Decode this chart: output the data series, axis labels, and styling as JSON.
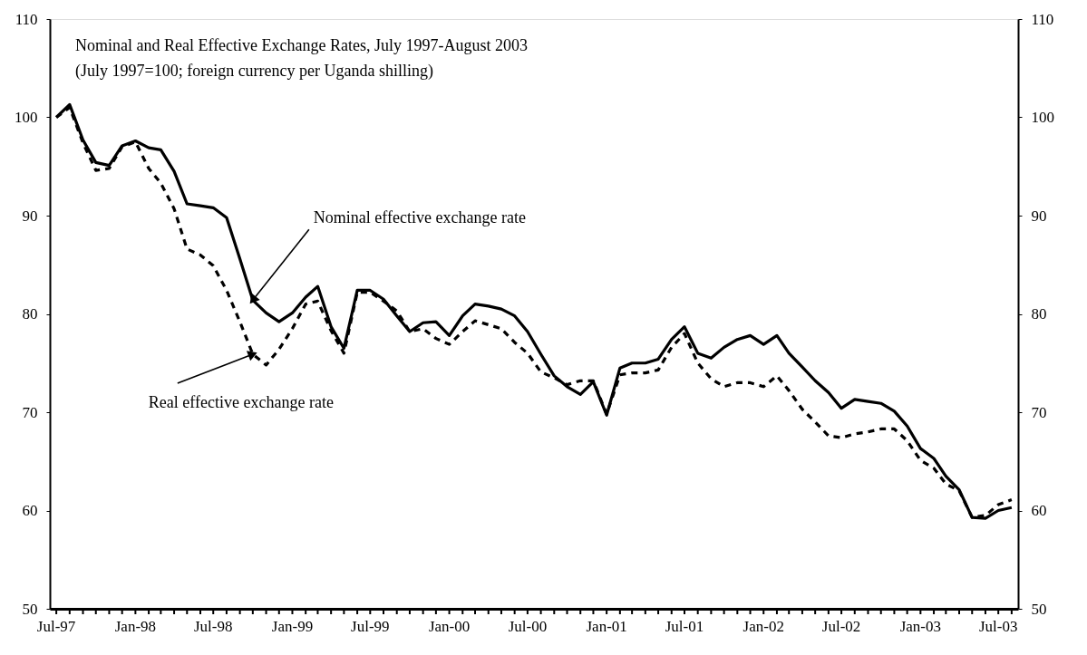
{
  "chart_data": {
    "type": "line",
    "title": "Nominal and Real Effective Exchange Rates, July 1997-August 2003",
    "subtitle": "(July 1997=100; foreign currency per Uganda shilling)",
    "x": [
      "1997-07",
      "1997-08",
      "1997-09",
      "1997-10",
      "1997-11",
      "1997-12",
      "1998-01",
      "1998-02",
      "1998-03",
      "1998-04",
      "1998-05",
      "1998-06",
      "1998-07",
      "1998-08",
      "1998-09",
      "1998-10",
      "1998-11",
      "1998-12",
      "1999-01",
      "1999-02",
      "1999-03",
      "1999-04",
      "1999-05",
      "1999-06",
      "1999-07",
      "1999-08",
      "1999-09",
      "1999-10",
      "1999-11",
      "1999-12",
      "2000-01",
      "2000-02",
      "2000-03",
      "2000-04",
      "2000-05",
      "2000-06",
      "2000-07",
      "2000-08",
      "2000-09",
      "2000-10",
      "2000-11",
      "2000-12",
      "2001-01",
      "2001-02",
      "2001-03",
      "2001-04",
      "2001-05",
      "2001-06",
      "2001-07",
      "2001-08",
      "2001-09",
      "2001-10",
      "2001-11",
      "2001-12",
      "2002-01",
      "2002-02",
      "2002-03",
      "2002-04",
      "2002-05",
      "2002-06",
      "2002-07",
      "2002-08",
      "2002-09",
      "2002-10",
      "2002-11",
      "2002-12",
      "2003-01",
      "2003-02",
      "2003-03",
      "2003-04",
      "2003-05",
      "2003-06",
      "2003-07",
      "2003-08"
    ],
    "series": [
      {
        "color": "#000000",
        "line_style": "solid",
        "values": [
          100,
          101.3,
          97.7,
          95.4,
          95.1,
          97.1,
          97.6,
          96.9,
          96.7,
          94.5,
          91.2,
          91.0,
          90.8,
          89.8,
          85.6,
          81.4,
          80.1,
          79.2,
          80.1,
          81.7,
          82.8,
          78.7,
          76.5,
          82.4,
          82.4,
          81.5,
          79.8,
          78.2,
          79.1,
          79.2,
          77.8,
          79.8,
          81.0,
          80.8,
          80.5,
          79.8,
          78.2,
          75.9,
          73.7,
          72.6,
          71.8,
          73.1,
          69.7,
          74.5,
          75.0,
          75.0,
          75.4,
          77.4,
          78.7,
          76.0,
          75.5,
          76.6,
          77.4,
          77.8,
          76.9,
          77.8,
          76.0,
          74.6,
          73.2,
          72.0,
          70.4,
          71.3,
          71.1,
          70.9,
          70.1,
          68.6,
          66.3,
          65.3,
          63.5,
          62.1,
          59.3,
          59.2,
          60.0,
          60.3
        ]
      },
      {
        "color": "#000000",
        "line_style": "dashed",
        "values": [
          100,
          101.0,
          97.4,
          94.6,
          94.8,
          97.0,
          97.5,
          94.8,
          93.3,
          90.7,
          86.6,
          86.0,
          84.9,
          82.4,
          79.2,
          75.9,
          74.8,
          76.4,
          78.5,
          81.0,
          81.3,
          78.3,
          76.0,
          82.2,
          82.2,
          81.3,
          80.3,
          78.2,
          78.5,
          77.5,
          76.9,
          78.2,
          79.3,
          78.9,
          78.5,
          77.1,
          76.0,
          74.1,
          73.5,
          72.8,
          73.2,
          73.2,
          69.8,
          73.8,
          74.0,
          74.0,
          74.3,
          76.6,
          78.0,
          75.0,
          73.4,
          72.6,
          73.0,
          73.0,
          72.6,
          73.7,
          72.2,
          70.3,
          69.0,
          67.6,
          67.4,
          67.8,
          68.0,
          68.3,
          68.3,
          67.1,
          65.1,
          64.3,
          62.7,
          62.0,
          59.3,
          59.5,
          60.6,
          61.1
        ]
      }
    ],
    "annotations": [
      {
        "text": "Nominal effective exchange rate",
        "x": "1998-10",
        "y": 81.4
      },
      {
        "text": "Real effective exchange rate",
        "x": "1998-10",
        "y": 75.9
      }
    ],
    "xlim": [
      "1997-06-16",
      "2003-08-16"
    ],
    "xticks": [
      {
        "value": "1997-07",
        "label": "Jul-97"
      },
      {
        "value": "1997-08",
        "label": null
      },
      {
        "value": "1997-09",
        "label": null
      },
      {
        "value": "1997-10",
        "label": null
      },
      {
        "value": "1997-11",
        "label": null
      },
      {
        "value": "1997-12",
        "label": null
      },
      {
        "value": "1998-01",
        "label": "Jan-98"
      },
      {
        "value": "1998-02",
        "label": null
      },
      {
        "value": "1998-03",
        "label": null
      },
      {
        "value": "1998-04",
        "label": null
      },
      {
        "value": "1998-05",
        "label": null
      },
      {
        "value": "1998-06",
        "label": null
      },
      {
        "value": "1998-07",
        "label": "Jul-98"
      },
      {
        "value": "1998-08",
        "label": null
      },
      {
        "value": "1998-09",
        "label": null
      },
      {
        "value": "1998-10",
        "label": null
      },
      {
        "value": "1998-11",
        "label": null
      },
      {
        "value": "1998-12",
        "label": null
      },
      {
        "value": "1999-01",
        "label": "Jan-99"
      },
      {
        "value": "1999-02",
        "label": null
      },
      {
        "value": "1999-03",
        "label": null
      },
      {
        "value": "1999-04",
        "label": null
      },
      {
        "value": "1999-05",
        "label": null
      },
      {
        "value": "1999-06",
        "label": null
      },
      {
        "value": "1999-07",
        "label": "Jul-99"
      },
      {
        "value": "1999-08",
        "label": null
      },
      {
        "value": "1999-09",
        "label": null
      },
      {
        "value": "1999-10",
        "label": null
      },
      {
        "value": "1999-11",
        "label": null
      },
      {
        "value": "1999-12",
        "label": null
      },
      {
        "value": "2000-01",
        "label": "Jan-00"
      },
      {
        "value": "2000-02",
        "label": null
      },
      {
        "value": "2000-03",
        "label": null
      },
      {
        "value": "2000-04",
        "label": null
      },
      {
        "value": "2000-05",
        "label": null
      },
      {
        "value": "2000-06",
        "label": null
      },
      {
        "value": "2000-07",
        "label": "Jul-00"
      },
      {
        "value": "2000-08",
        "label": null
      },
      {
        "value": "2000-09",
        "label": null
      },
      {
        "value": "2000-10",
        "label": null
      },
      {
        "value": "2000-11",
        "label": null
      },
      {
        "value": "2000-12",
        "label": null
      },
      {
        "value": "2001-01",
        "label": "Jan-01"
      },
      {
        "value": "2001-02",
        "label": null
      },
      {
        "value": "2001-03",
        "label": null
      },
      {
        "value": "2001-04",
        "label": null
      },
      {
        "value": "2001-05",
        "label": null
      },
      {
        "value": "2001-06",
        "label": null
      },
      {
        "value": "2001-07",
        "label": "Jul-01"
      },
      {
        "value": "2001-08",
        "label": null
      },
      {
        "value": "2001-09",
        "label": null
      },
      {
        "value": "2001-10",
        "label": null
      },
      {
        "value": "2001-11",
        "label": null
      },
      {
        "value": "2001-12",
        "label": null
      },
      {
        "value": "2002-01",
        "label": "Jan-02"
      },
      {
        "value": "2002-02",
        "label": null
      },
      {
        "value": "2002-03",
        "label": null
      },
      {
        "value": "2002-04",
        "label": null
      },
      {
        "value": "2002-05",
        "label": null
      },
      {
        "value": "2002-06",
        "label": null
      },
      {
        "value": "2002-07",
        "label": "Jul-02"
      },
      {
        "value": "2002-08",
        "label": null
      },
      {
        "value": "2002-09",
        "label": null
      },
      {
        "value": "2002-10",
        "label": null
      },
      {
        "value": "2002-11",
        "label": null
      },
      {
        "value": "2002-12",
        "label": null
      },
      {
        "value": "2003-01",
        "label": "Jan-03"
      },
      {
        "value": "2003-02",
        "label": null
      },
      {
        "value": "2003-03",
        "label": null
      },
      {
        "value": "2003-04",
        "label": null
      },
      {
        "value": "2003-05",
        "label": null
      },
      {
        "value": "2003-06",
        "label": null
      },
      {
        "value": "2003-07",
        "label": "Jul-03"
      },
      {
        "value": "2003-08",
        "label": null
      }
    ],
    "ylim": [
      50,
      110
    ],
    "yticks": [
      50,
      60,
      70,
      80,
      90,
      100,
      110
    ],
    "y2lim": [
      50,
      110
    ],
    "y2ticks": [
      50,
      60,
      70,
      80,
      90,
      100,
      110
    ],
    "grid": false,
    "marker": "none"
  }
}
